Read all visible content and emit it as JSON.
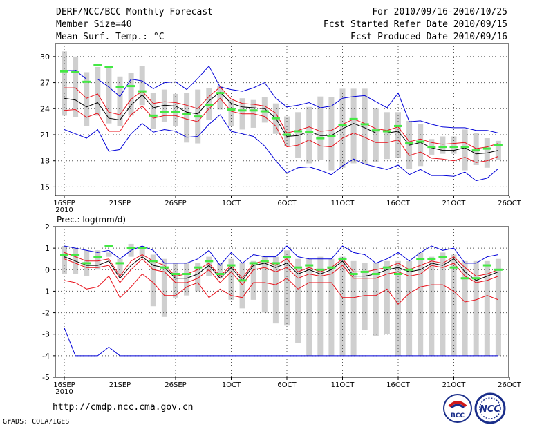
{
  "header": {
    "title": "DERF/NCC/BCC Monthly Forecast",
    "member_size": "Member Size=40",
    "variable1": "Mean Surf. Temp.: °C",
    "forecast_period": "For 2010/09/16-2010/10/25",
    "refer_date": "Fcst Started Refer Date 2010/09/15",
    "produced_date": "Fcst Produced Date 2010/09/16"
  },
  "footer": {
    "url": "http://cmdp.ncc.cma.gov.cn",
    "grads": "GrADS: COLA/IGES",
    "logo_left_text": "BCC",
    "logo_right_text": "NCC"
  },
  "colors": {
    "mean": "#000000",
    "spread": "#e8101a",
    "envelope": "#0000d8",
    "clim": "#44e844",
    "box": "#cfcfcf"
  },
  "chart_data": [
    {
      "type": "line",
      "name": "temperature",
      "ylabel": "",
      "ylim": [
        14,
        31.5
      ],
      "yticks": [
        15,
        18,
        21,
        24,
        27,
        30
      ],
      "xticks": [
        {
          "day": 0,
          "label": "16SEP",
          "sub": "2010"
        },
        {
          "day": 5,
          "label": "21SEP",
          "sub": ""
        },
        {
          "day": 10,
          "label": "26SEP",
          "sub": ""
        },
        {
          "day": 15,
          "label": "1OCT",
          "sub": ""
        },
        {
          "day": 20,
          "label": "6OCT",
          "sub": ""
        },
        {
          "day": 25,
          "label": "11OCT",
          "sub": ""
        },
        {
          "day": 30,
          "label": "16OCT",
          "sub": ""
        },
        {
          "day": 35,
          "label": "21OCT",
          "sub": ""
        },
        {
          "day": 40,
          "label": "26OCT",
          "sub": ""
        }
      ],
      "mean": [
        25.2,
        25.0,
        24.2,
        24.7,
        22.9,
        22.7,
        24.4,
        25.6,
        24.1,
        24.4,
        24.3,
        23.6,
        23.4,
        24.9,
        25.9,
        24.6,
        24.2,
        24.1,
        24.0,
        22.9,
        20.8,
        20.9,
        21.4,
        20.9,
        20.9,
        21.7,
        22.3,
        21.8,
        21.2,
        21.2,
        21.4,
        19.8,
        20.1,
        19.5,
        19.2,
        19.2,
        19.5,
        18.8,
        18.9,
        19.2
      ],
      "upper": [
        26.4,
        26.4,
        25.2,
        25.7,
        23.6,
        23.3,
        25.1,
        26.0,
        24.6,
        24.8,
        24.7,
        24.4,
        24.0,
        25.4,
        26.5,
        25.1,
        24.6,
        24.5,
        24.3,
        23.5,
        21.2,
        21.5,
        21.9,
        21.4,
        21.5,
        22.2,
        22.8,
        22.3,
        21.7,
        21.5,
        21.9,
        20.2,
        20.5,
        20.1,
        19.9,
        20.0,
        20.1,
        19.4,
        19.6,
        20.0
      ],
      "lower": [
        23.8,
        23.9,
        23.0,
        23.5,
        21.4,
        21.4,
        23.3,
        24.3,
        22.9,
        23.2,
        23.2,
        22.8,
        22.5,
        24.0,
        25.2,
        23.7,
        23.4,
        23.4,
        23.1,
        22.0,
        19.6,
        19.8,
        20.4,
        19.7,
        19.6,
        20.6,
        21.2,
        20.7,
        20.1,
        20.1,
        20.4,
        18.6,
        19.0,
        18.3,
        18.2,
        18.0,
        18.4,
        17.8,
        18.0,
        18.5
      ],
      "max": [
        28.4,
        28.4,
        27.4,
        27.4,
        26.5,
        25.4,
        27.4,
        27.2,
        26.3,
        27.0,
        27.1,
        26.2,
        27.5,
        28.9,
        26.5,
        26.2,
        26.0,
        26.4,
        27.0,
        25.2,
        24.2,
        24.4,
        24.7,
        24.1,
        24.3,
        25.2,
        25.4,
        25.5,
        24.8,
        24.1,
        25.8,
        22.5,
        22.6,
        22.2,
        21.9,
        21.8,
        21.8,
        21.5,
        21.5,
        21.2
      ],
      "min": [
        21.6,
        21.1,
        20.6,
        21.6,
        19.1,
        19.3,
        21.1,
        22.3,
        21.3,
        21.6,
        21.4,
        20.7,
        20.8,
        22.2,
        23.3,
        21.4,
        21.1,
        20.8,
        19.7,
        18.0,
        16.6,
        17.2,
        17.3,
        16.9,
        16.4,
        17.4,
        18.2,
        17.6,
        17.3,
        17.0,
        17.5,
        16.4,
        17.0,
        16.3,
        16.3,
        16.2,
        16.7,
        15.7,
        16.0,
        17.1
      ],
      "clim": [
        28.3,
        28.2,
        27.1,
        29.0,
        28.8,
        26.5,
        26.6,
        26.0,
        23.2,
        23.6,
        23.6,
        23.4,
        23.1,
        24.4,
        25.8,
        23.9,
        23.8,
        23.8,
        23.7,
        22.9,
        21.0,
        21.4,
        21.3,
        20.6,
        20.8,
        22.1,
        22.8,
        22.2,
        21.5,
        21.4,
        22.0,
        20.0,
        20.2,
        19.6,
        19.6,
        19.6,
        19.6,
        19.2,
        19.4,
        19.8
      ],
      "box_hi": [
        30.6,
        30.0,
        28.2,
        28.8,
        28.9,
        27.7,
        28.1,
        28.9,
        25.8,
        26.2,
        25.7,
        25.8,
        26.2,
        26.4,
        26.6,
        25.0,
        25.2,
        25.0,
        25.3,
        24.6,
        23.1,
        23.6,
        24.2,
        25.4,
        25.3,
        26.3,
        26.3,
        26.3,
        24.0,
        23.6,
        23.6,
        22.6,
        22.2,
        20.5,
        20.8,
        20.8,
        21.6,
        21.2,
        20.6,
        20.3
      ],
      "box_lo": [
        23.2,
        23.0,
        22.0,
        23.2,
        22.3,
        22.0,
        23.2,
        24.4,
        21.7,
        22.5,
        22.0,
        20.1,
        20.0,
        22.7,
        23.9,
        22.0,
        21.6,
        21.8,
        22.4,
        21.1,
        19.7,
        18.3,
        17.7,
        18.1,
        16.9,
        17.2,
        17.7,
        17.6,
        17.9,
        18.2,
        18.3,
        17.1,
        17.4,
        18.7,
        18.8,
        18.8,
        16.9,
        17.5,
        17.2,
        18.1
      ]
    },
    {
      "type": "line",
      "name": "precipitation",
      "ylabel": "Prec.: log(mm/d)",
      "ylim": [
        -5,
        2
      ],
      "yticks": [
        -5,
        -4,
        -3,
        -2,
        -1,
        0,
        1,
        2
      ],
      "xticks": [
        {
          "day": 0,
          "label": "16SEP",
          "sub": "2010"
        },
        {
          "day": 5,
          "label": "21SEP",
          "sub": ""
        },
        {
          "day": 10,
          "label": "26SEP",
          "sub": ""
        },
        {
          "day": 15,
          "label": "1OCT",
          "sub": ""
        },
        {
          "day": 20,
          "label": "6OCT",
          "sub": ""
        },
        {
          "day": 25,
          "label": "11OCT",
          "sub": ""
        },
        {
          "day": 30,
          "label": "16OCT",
          "sub": ""
        },
        {
          "day": 35,
          "label": "21OCT",
          "sub": ""
        },
        {
          "day": 40,
          "label": "26OCT",
          "sub": ""
        }
      ],
      "mean": [
        0.6,
        0.4,
        0.2,
        0.2,
        0.4,
        -0.4,
        0.2,
        0.6,
        0.2,
        0.1,
        -0.4,
        -0.4,
        -0.2,
        0.2,
        -0.4,
        0.1,
        -0.5,
        0.2,
        0.3,
        0.1,
        0.3,
        -0.2,
        0.0,
        -0.2,
        0.0,
        0.4,
        -0.3,
        -0.3,
        -0.2,
        0.0,
        0.1,
        -0.1,
        0.0,
        0.3,
        0.2,
        0.5,
        -0.1,
        -0.5,
        -0.3,
        -0.1
      ],
      "upper": [
        0.8,
        0.6,
        0.4,
        0.4,
        0.5,
        -0.3,
        0.4,
        0.7,
        0.4,
        0.2,
        -0.3,
        -0.2,
        0.0,
        0.3,
        -0.3,
        0.2,
        -0.4,
        0.3,
        0.4,
        0.2,
        0.5,
        -0.1,
        0.1,
        -0.1,
        0.1,
        0.5,
        -0.1,
        -0.1,
        0.0,
        0.1,
        0.3,
        0.0,
        0.2,
        0.4,
        0.3,
        0.6,
        0.1,
        -0.3,
        -0.2,
        0.0
      ],
      "lower": [
        0.5,
        0.3,
        0.1,
        0.1,
        0.2,
        -0.6,
        0.0,
        0.5,
        0.0,
        -0.1,
        -0.6,
        -0.6,
        -0.4,
        0.0,
        -0.6,
        -0.1,
        -0.7,
        0.0,
        0.1,
        -0.1,
        0.1,
        -0.4,
        -0.2,
        -0.3,
        -0.2,
        0.2,
        -0.4,
        -0.4,
        -0.4,
        -0.2,
        -0.1,
        -0.3,
        -0.2,
        0.2,
        0.1,
        0.3,
        -0.3,
        -0.6,
        -0.5,
        -0.3
      ],
      "max": [
        1.1,
        1.0,
        0.9,
        0.8,
        0.9,
        0.5,
        0.9,
        1.1,
        0.9,
        0.3,
        0.3,
        0.3,
        0.5,
        0.9,
        0.2,
        0.8,
        0.3,
        0.7,
        0.6,
        0.6,
        1.1,
        0.6,
        0.5,
        0.5,
        0.5,
        1.1,
        0.8,
        0.7,
        0.3,
        0.5,
        0.8,
        0.4,
        0.8,
        1.1,
        0.9,
        1.0,
        0.3,
        0.3,
        0.6,
        0.7
      ],
      "min": [
        -2.7,
        -4.0,
        -4.0,
        -4.0,
        -3.6,
        -4.0,
        -4.0,
        -4.0,
        -4.0,
        -4.0,
        -4.0,
        -4.0,
        -4.0,
        -4.0,
        -4.0,
        -4.0,
        -4.0,
        -4.0,
        -4.0,
        -4.0,
        -4.0,
        -4.0,
        -4.0,
        -4.0,
        -4.0,
        -4.0,
        -4.0,
        -4.0,
        -4.0,
        -4.0,
        -4.0,
        -4.0,
        -4.0,
        -4.0,
        -4.0,
        -4.0,
        -4.0,
        -4.0,
        -4.0,
        -4.0
      ],
      "low_red": [
        -0.5,
        -0.6,
        -0.9,
        -0.8,
        -0.3,
        -1.3,
        -0.8,
        -0.2,
        -0.6,
        -1.2,
        -1.2,
        -0.8,
        -0.6,
        -1.3,
        -0.9,
        -1.2,
        -1.3,
        -0.6,
        -0.6,
        -0.7,
        -0.4,
        -0.9,
        -0.6,
        -0.6,
        -0.6,
        -1.3,
        -1.3,
        -1.2,
        -1.2,
        -0.9,
        -1.6,
        -1.1,
        -0.8,
        -0.7,
        -0.7,
        -1.0,
        -1.5,
        -1.4,
        -1.2,
        -1.4
      ],
      "clim": [
        0.7,
        0.7,
        0.3,
        0.6,
        1.1,
        0.3,
        1.0,
        1.0,
        0.4,
        0.1,
        -0.2,
        -0.2,
        0.1,
        0.4,
        -0.2,
        0.2,
        -0.5,
        0.3,
        0.4,
        0.3,
        0.6,
        0.1,
        0.2,
        0.0,
        0.1,
        0.5,
        -0.2,
        -0.1,
        -0.2,
        0.1,
        -0.2,
        0.0,
        0.5,
        0.5,
        0.6,
        0.1,
        -0.4,
        -0.4,
        0.2,
        0.0
      ],
      "box_hi": [
        1.1,
        1.0,
        0.9,
        0.9,
        0.8,
        0.5,
        1.2,
        1.1,
        0.7,
        0.5,
        0.3,
        0.3,
        0.3,
        0.6,
        0.3,
        0.5,
        0.3,
        0.4,
        0.6,
        0.6,
        0.9,
        0.5,
        0.5,
        0.6,
        0.5,
        0.6,
        0.4,
        0.3,
        0.3,
        0.4,
        0.4,
        0.4,
        0.8,
        0.6,
        0.8,
        0.7,
        0.4,
        0.4,
        0.4,
        0.5
      ],
      "box_lo": [
        -0.2,
        -0.2,
        -0.3,
        0.0,
        0.6,
        -0.2,
        0.6,
        0.6,
        -1.7,
        -2.2,
        -1.3,
        -1.2,
        -1.0,
        -0.3,
        -0.4,
        -1.4,
        -1.8,
        -1.4,
        -2.0,
        -2.5,
        -2.6,
        -3.4,
        -4.0,
        -4.0,
        -4.0,
        -4.0,
        -4.0,
        -2.8,
        -3.1,
        -3.0,
        -4.0,
        -4.0,
        -4.0,
        -4.0,
        -4.0,
        -4.0,
        -4.0,
        -4.0,
        -4.0,
        -4.0
      ]
    }
  ]
}
